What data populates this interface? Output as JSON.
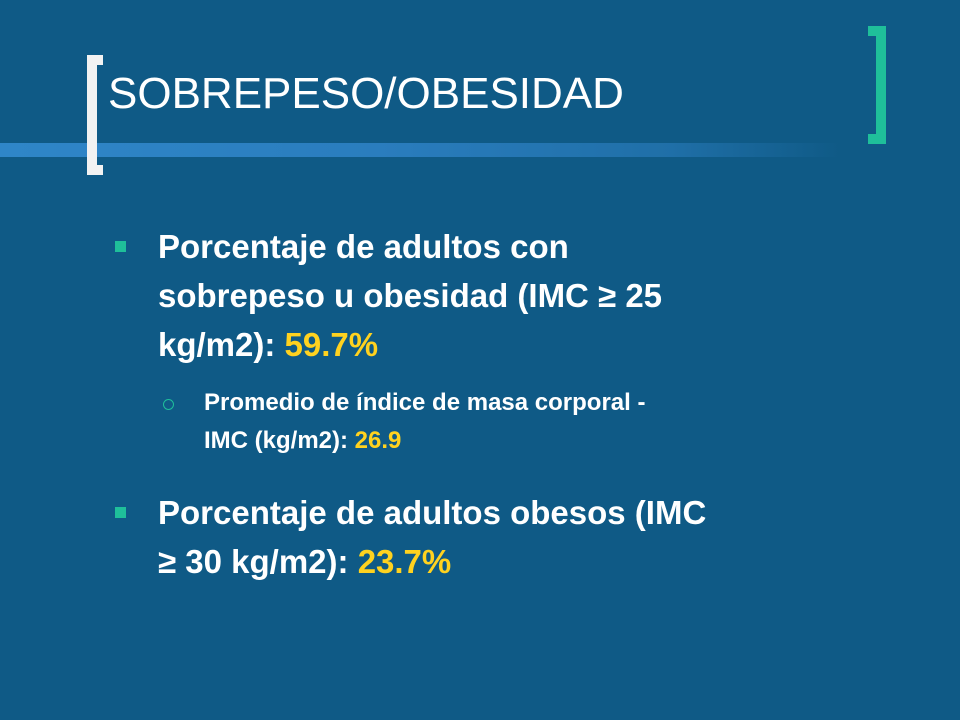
{
  "slide": {
    "title": "SOBREPESO/OBESIDAD",
    "colors": {
      "background": "#0F5A86",
      "accent": "#1FBF9A",
      "highlight": "#FFD21F",
      "text": "#FFFFFF"
    },
    "bullets": [
      {
        "line1": "Porcentaje de adultos con",
        "line2": "sobrepeso u obesidad  (IMC ≥ 25",
        "line3_prefix": "kg/m2): ",
        "value": "59.7%"
      },
      {
        "line1": "Promedio de índice de masa corporal -",
        "line2_prefix": "IMC  (kg/m2): ",
        "value": "26.9"
      },
      {
        "line1": "Porcentaje de adultos obesos (IMC",
        "line2_prefix": "≥ 30 kg/m2): ",
        "value": "23.7%"
      }
    ]
  }
}
